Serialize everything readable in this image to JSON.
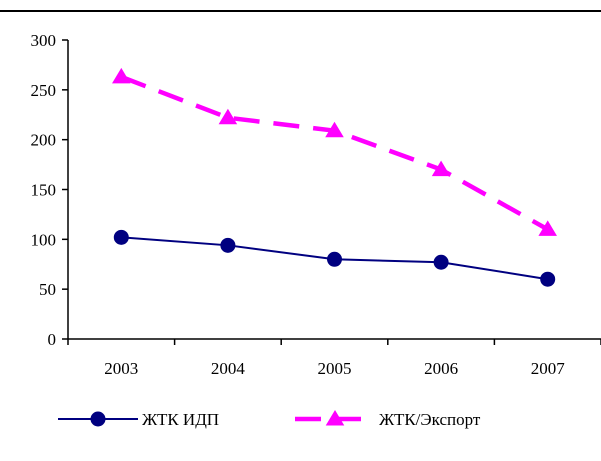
{
  "chart_data": {
    "type": "line",
    "title": "",
    "xlabel": "",
    "ylabel": "",
    "categories": [
      "2003",
      "2004",
      "2005",
      "2006",
      "2007"
    ],
    "ylim": [
      0,
      300
    ],
    "yticks": [
      0,
      50,
      100,
      150,
      200,
      250,
      300
    ],
    "grid": false,
    "legend_position": "bottom",
    "series": [
      {
        "name": "ЖТК ИДП",
        "values": [
          102,
          94,
          80,
          77,
          60
        ],
        "color": "#000080",
        "marker": "circle",
        "line_style": "solid"
      },
      {
        "name": "ЖТК/Экспорт",
        "values": [
          263,
          222,
          209,
          170,
          110
        ],
        "color": "#ff00ff",
        "marker": "triangle",
        "line_style": "dashed"
      }
    ]
  }
}
